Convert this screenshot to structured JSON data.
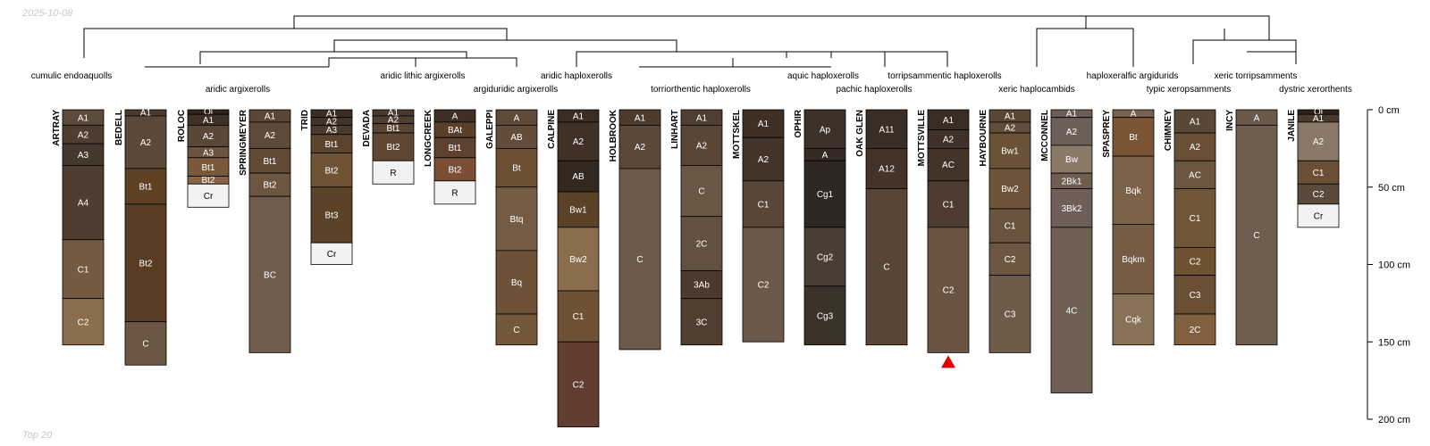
{
  "header": {
    "date": "2025-10-08"
  },
  "footer": {
    "note": "Top 20"
  },
  "depth_axis": {
    "unit": "cm",
    "max": 200,
    "ticks": [
      {
        "value": 0,
        "label": "0 cm"
      },
      {
        "value": 50,
        "label": "50 cm"
      },
      {
        "value": 100,
        "label": "100 cm"
      },
      {
        "value": 150,
        "label": "150 cm"
      },
      {
        "value": 200,
        "label": "200 cm"
      }
    ]
  },
  "taxa": [
    "cumulic endoaquolls",
    "aridic argixerolls",
    "aridic lithic argixerolls",
    "argiduridic argixerolls",
    "aridic haploxerolls",
    "torriorthentic haploxerolls",
    "aquic haploxerolls",
    "pachic haploxerolls",
    "torripsammentic haploxerolls",
    "xeric haplocambids",
    "haploxeralfic argidurids",
    "typic xeropsamments",
    "xeric torripsamments",
    "dystric xerorthents"
  ],
  "marker": {
    "profile": "MOTTSVILLE",
    "symbol": "triangle",
    "color": "#e00000"
  },
  "profiles": [
    {
      "name": "ARTRAY",
      "horizons": [
        {
          "name": "A1",
          "top": 0,
          "bottom": 10,
          "color": "#5c4a3a"
        },
        {
          "name": "A2",
          "top": 10,
          "bottom": 22,
          "color": "#4e3e31"
        },
        {
          "name": "A3",
          "top": 22,
          "bottom": 36,
          "color": "#45382c"
        },
        {
          "name": "A4",
          "top": 36,
          "bottom": 84,
          "color": "#4d3e31"
        },
        {
          "name": "C1",
          "top": 84,
          "bottom": 122,
          "color": "#735a40"
        },
        {
          "name": "C2",
          "top": 122,
          "bottom": 152,
          "color": "#8a6d4c"
        }
      ]
    },
    {
      "name": "BEDELL",
      "horizons": [
        {
          "name": "A1",
          "top": 0,
          "bottom": 4,
          "color": "#4b3b2e"
        },
        {
          "name": "A2",
          "top": 4,
          "bottom": 38,
          "color": "#5b4838"
        },
        {
          "name": "Bt1",
          "top": 38,
          "bottom": 61,
          "color": "#604023"
        },
        {
          "name": "Bt2",
          "top": 61,
          "bottom": 137,
          "color": "#5a3c22"
        },
        {
          "name": "C",
          "top": 137,
          "bottom": 165,
          "color": "#6b5644"
        }
      ]
    },
    {
      "name": "ROLOC",
      "horizons": [
        {
          "name": "Oi",
          "top": 0,
          "bottom": 3,
          "color": "#2d2520"
        },
        {
          "name": "A1",
          "top": 3,
          "bottom": 10,
          "color": "#3d3128"
        },
        {
          "name": "A2",
          "top": 10,
          "bottom": 24,
          "color": "#5a4736"
        },
        {
          "name": "A3",
          "top": 24,
          "bottom": 31,
          "color": "#6a5440"
        },
        {
          "name": "Bt1",
          "top": 31,
          "bottom": 43,
          "color": "#7a583a"
        },
        {
          "name": "Bt2",
          "top": 43,
          "bottom": 48,
          "color": "#8a6244"
        },
        {
          "name": "Cr",
          "top": 48,
          "bottom": 63,
          "color": "#f2f2f2"
        }
      ]
    },
    {
      "name": "SPRINGMEYER",
      "horizons": [
        {
          "name": "A1",
          "top": 0,
          "bottom": 8,
          "color": "#5a4736"
        },
        {
          "name": "A2",
          "top": 8,
          "bottom": 25,
          "color": "#5e4a38"
        },
        {
          "name": "Bt1",
          "top": 25,
          "bottom": 41,
          "color": "#604a34"
        },
        {
          "name": "Bt2",
          "top": 41,
          "bottom": 56,
          "color": "#6d5640"
        },
        {
          "name": "BC",
          "top": 56,
          "bottom": 157,
          "color": "#6f5c4d"
        }
      ]
    },
    {
      "name": "TRID",
      "horizons": [
        {
          "name": "A1",
          "top": 0,
          "bottom": 5,
          "color": "#3a2e25"
        },
        {
          "name": "A2",
          "top": 5,
          "bottom": 10,
          "color": "#433429"
        },
        {
          "name": "A3",
          "top": 10,
          "bottom": 16,
          "color": "#4a3a2d"
        },
        {
          "name": "Bt1",
          "top": 16,
          "bottom": 28,
          "color": "#5b442e"
        },
        {
          "name": "Bt2",
          "top": 28,
          "bottom": 50,
          "color": "#705234"
        },
        {
          "name": "Bt3",
          "top": 50,
          "bottom": 86,
          "color": "#5c4328"
        },
        {
          "name": "Cr",
          "top": 86,
          "bottom": 100,
          "color": "#f2f2f2"
        }
      ]
    },
    {
      "name": "DEVADA",
      "horizons": [
        {
          "name": "A1",
          "top": 0,
          "bottom": 4,
          "color": "#4a3a2c"
        },
        {
          "name": "A2",
          "top": 4,
          "bottom": 9,
          "color": "#523f30"
        },
        {
          "name": "Bt1",
          "top": 9,
          "bottom": 15,
          "color": "#5a4432"
        },
        {
          "name": "Bt2",
          "top": 15,
          "bottom": 33,
          "color": "#5e4835"
        },
        {
          "name": "R",
          "top": 33,
          "bottom": 48,
          "color": "#f2f2f2"
        }
      ]
    },
    {
      "name": "LONGCREEK",
      "horizons": [
        {
          "name": "A",
          "top": 0,
          "bottom": 8,
          "color": "#3e3026"
        },
        {
          "name": "BAt",
          "top": 8,
          "bottom": 18,
          "color": "#5a3f2a"
        },
        {
          "name": "Bt1",
          "top": 18,
          "bottom": 31,
          "color": "#5d4230"
        },
        {
          "name": "Bt2",
          "top": 31,
          "bottom": 46,
          "color": "#7a4f36"
        },
        {
          "name": "R",
          "top": 46,
          "bottom": 61,
          "color": "#f2f2f2"
        }
      ]
    },
    {
      "name": "GALEPPI",
      "horizons": [
        {
          "name": "A",
          "top": 0,
          "bottom": 10,
          "color": "#5e4a39"
        },
        {
          "name": "AB",
          "top": 10,
          "bottom": 25,
          "color": "#634d3a"
        },
        {
          "name": "Bt",
          "top": 25,
          "bottom": 50,
          "color": "#6b4f32"
        },
        {
          "name": "Btq",
          "top": 50,
          "bottom": 91,
          "color": "#745b44"
        },
        {
          "name": "Bq",
          "top": 91,
          "bottom": 132,
          "color": "#6d5238"
        },
        {
          "name": "C",
          "top": 132,
          "bottom": 152,
          "color": "#74583b"
        }
      ]
    },
    {
      "name": "CALPINE",
      "horizons": [
        {
          "name": "A1",
          "top": 0,
          "bottom": 8,
          "color": "#3a2d24"
        },
        {
          "name": "A2",
          "top": 8,
          "bottom": 33,
          "color": "#403126"
        },
        {
          "name": "AB",
          "top": 33,
          "bottom": 53,
          "color": "#322820"
        },
        {
          "name": "Bw1",
          "top": 53,
          "bottom": 76,
          "color": "#5a4127"
        },
        {
          "name": "Bw2",
          "top": 76,
          "bottom": 117,
          "color": "#8a6d4d"
        },
        {
          "name": "C1",
          "top": 117,
          "bottom": 150,
          "color": "#6f5135"
        },
        {
          "name": "C2",
          "top": 150,
          "bottom": 205,
          "color": "#623e32"
        }
      ]
    },
    {
      "name": "HOLBROOK",
      "horizons": [
        {
          "name": "A1",
          "top": 0,
          "bottom": 10,
          "color": "#4d3c2e"
        },
        {
          "name": "A2",
          "top": 10,
          "bottom": 38,
          "color": "#5c4838"
        },
        {
          "name": "C",
          "top": 38,
          "bottom": 155,
          "color": "#6c5a4a"
        }
      ]
    },
    {
      "name": "LINHART",
      "horizons": [
        {
          "name": "A1",
          "top": 0,
          "bottom": 10,
          "color": "#4f3e31"
        },
        {
          "name": "A2",
          "top": 10,
          "bottom": 36,
          "color": "#5a4636"
        },
        {
          "name": "C",
          "top": 36,
          "bottom": 69,
          "color": "#6a5645"
        },
        {
          "name": "2C",
          "top": 69,
          "bottom": 104,
          "color": "#625040"
        },
        {
          "name": "3Ab",
          "top": 104,
          "bottom": 122,
          "color": "#4b3b2e"
        },
        {
          "name": "3C",
          "top": 122,
          "bottom": 152,
          "color": "#4f3f31"
        }
      ]
    },
    {
      "name": "MOTTSKEL",
      "horizons": [
        {
          "name": "A1",
          "top": 0,
          "bottom": 18,
          "color": "#3f3026"
        },
        {
          "name": "A2",
          "top": 18,
          "bottom": 46,
          "color": "#43342a"
        },
        {
          "name": "C1",
          "top": 46,
          "bottom": 76,
          "color": "#5a4636"
        },
        {
          "name": "C2",
          "top": 76,
          "bottom": 150,
          "color": "#6b5848"
        }
      ]
    },
    {
      "name": "OPHIR",
      "horizons": [
        {
          "name": "Ap",
          "top": 0,
          "bottom": 25,
          "color": "#3d322a"
        },
        {
          "name": "A",
          "top": 25,
          "bottom": 33,
          "color": "#352b24"
        },
        {
          "name": "Cg1",
          "top": 33,
          "bottom": 76,
          "color": "#2e2722"
        },
        {
          "name": "Cg2",
          "top": 76,
          "bottom": 114,
          "color": "#4a3e34"
        },
        {
          "name": "Cg3",
          "top": 114,
          "bottom": 152,
          "color": "#3b322a"
        }
      ]
    },
    {
      "name": "OAK GLEN",
      "horizons": [
        {
          "name": "A11",
          "top": 0,
          "bottom": 25,
          "color": "#3a2d24"
        },
        {
          "name": "A12",
          "top": 25,
          "bottom": 51,
          "color": "#43342a"
        },
        {
          "name": "C",
          "top": 51,
          "bottom": 152,
          "color": "#574636"
        }
      ]
    },
    {
      "name": "MOTTSVILLE",
      "horizons": [
        {
          "name": "A1",
          "top": 0,
          "bottom": 13,
          "color": "#3a2d24"
        },
        {
          "name": "A2",
          "top": 13,
          "bottom": 25,
          "color": "#3f3127"
        },
        {
          "name": "AC",
          "top": 25,
          "bottom": 46,
          "color": "#43342a"
        },
        {
          "name": "C1",
          "top": 46,
          "bottom": 76,
          "color": "#4d3c2f"
        },
        {
          "name": "C2",
          "top": 76,
          "bottom": 157,
          "color": "#6a5545"
        }
      ]
    },
    {
      "name": "HAYBOURNE",
      "horizons": [
        {
          "name": "A1",
          "top": 0,
          "bottom": 8,
          "color": "#5a4634"
        },
        {
          "name": "A2",
          "top": 8,
          "bottom": 15,
          "color": "#624d3a"
        },
        {
          "name": "Bw1",
          "top": 15,
          "bottom": 38,
          "color": "#6a5236"
        },
        {
          "name": "Bw2",
          "top": 38,
          "bottom": 64,
          "color": "#6e5438"
        },
        {
          "name": "C1",
          "top": 64,
          "bottom": 86,
          "color": "#6a5440"
        },
        {
          "name": "C2",
          "top": 86,
          "bottom": 107,
          "color": "#6d5642"
        },
        {
          "name": "C3",
          "top": 107,
          "bottom": 157,
          "color": "#6f5b4a"
        }
      ]
    },
    {
      "name": "MCCONNEL",
      "horizons": [
        {
          "name": "A1",
          "top": 0,
          "bottom": 5,
          "color": "#6a5e56"
        },
        {
          "name": "A2",
          "top": 5,
          "bottom": 23,
          "color": "#6d6058"
        },
        {
          "name": "Bw",
          "top": 23,
          "bottom": 41,
          "color": "#8a7a68"
        },
        {
          "name": "2Bk1",
          "top": 41,
          "bottom": 51,
          "color": "#6e5e50"
        },
        {
          "name": "3Bk2",
          "top": 51,
          "bottom": 76,
          "color": "#6e6058"
        },
        {
          "name": "4C",
          "top": 76,
          "bottom": 183,
          "color": "#6e6052"
        }
      ]
    },
    {
      "name": "SPASPREY",
      "horizons": [
        {
          "name": "A",
          "top": 0,
          "bottom": 5,
          "color": "#7a6250"
        },
        {
          "name": "Bt",
          "top": 5,
          "bottom": 30,
          "color": "#7a5634"
        },
        {
          "name": "Bqk",
          "top": 30,
          "bottom": 74,
          "color": "#7c6248"
        },
        {
          "name": "Bqkm",
          "top": 74,
          "bottom": 119,
          "color": "#765c44"
        },
        {
          "name": "Cqk",
          "top": 119,
          "bottom": 152,
          "color": "#8a7258"
        }
      ]
    },
    {
      "name": "CHIMNEY",
      "horizons": [
        {
          "name": "A1",
          "top": 0,
          "bottom": 15,
          "color": "#5a4837"
        },
        {
          "name": "A2",
          "top": 15,
          "bottom": 33,
          "color": "#6a4f36"
        },
        {
          "name": "AC",
          "top": 33,
          "bottom": 51,
          "color": "#6d5640"
        },
        {
          "name": "C1",
          "top": 51,
          "bottom": 89,
          "color": "#705536"
        },
        {
          "name": "C2",
          "top": 89,
          "bottom": 107,
          "color": "#6e5232"
        },
        {
          "name": "C3",
          "top": 107,
          "bottom": 132,
          "color": "#6a4f34"
        },
        {
          "name": "2C",
          "top": 132,
          "bottom": 152,
          "color": "#80603e"
        }
      ]
    },
    {
      "name": "INCY",
      "horizons": [
        {
          "name": "A",
          "top": 0,
          "bottom": 10,
          "color": "#6a5a4c"
        },
        {
          "name": "C",
          "top": 10,
          "bottom": 152,
          "color": "#6e5e50"
        }
      ]
    },
    {
      "name": "JANILE",
      "horizons": [
        {
          "name": "Oi",
          "top": 0,
          "bottom": 3,
          "color": "#2b221c"
        },
        {
          "name": "A1",
          "top": 3,
          "bottom": 8,
          "color": "#4a3a2e"
        },
        {
          "name": "A2",
          "top": 8,
          "bottom": 33,
          "color": "#8a7868"
        },
        {
          "name": "C1",
          "top": 33,
          "bottom": 48,
          "color": "#6a4e36"
        },
        {
          "name": "C2",
          "top": 48,
          "bottom": 61,
          "color": "#5a4a3c"
        },
        {
          "name": "Cr",
          "top": 61,
          "bottom": 76,
          "color": "#f2f2f2"
        }
      ]
    }
  ]
}
